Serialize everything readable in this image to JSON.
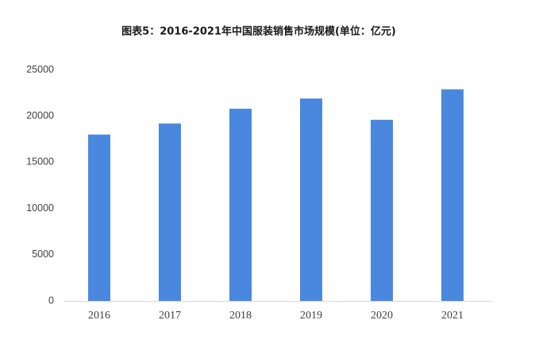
{
  "chart_data": {
    "type": "bar",
    "title": "图表5：2016-2021年中国服装销售市场规模(单位：亿元)",
    "categories": [
      "2016",
      "2017",
      "2018",
      "2019",
      "2020",
      "2021"
    ],
    "values": [
      18000,
      19200,
      20800,
      21900,
      19600,
      22900
    ],
    "color": "#4a88e0",
    "ylim": [
      0,
      25000
    ],
    "yticks": [
      0,
      5000,
      10000,
      15000,
      20000,
      25000
    ],
    "grid": false
  }
}
